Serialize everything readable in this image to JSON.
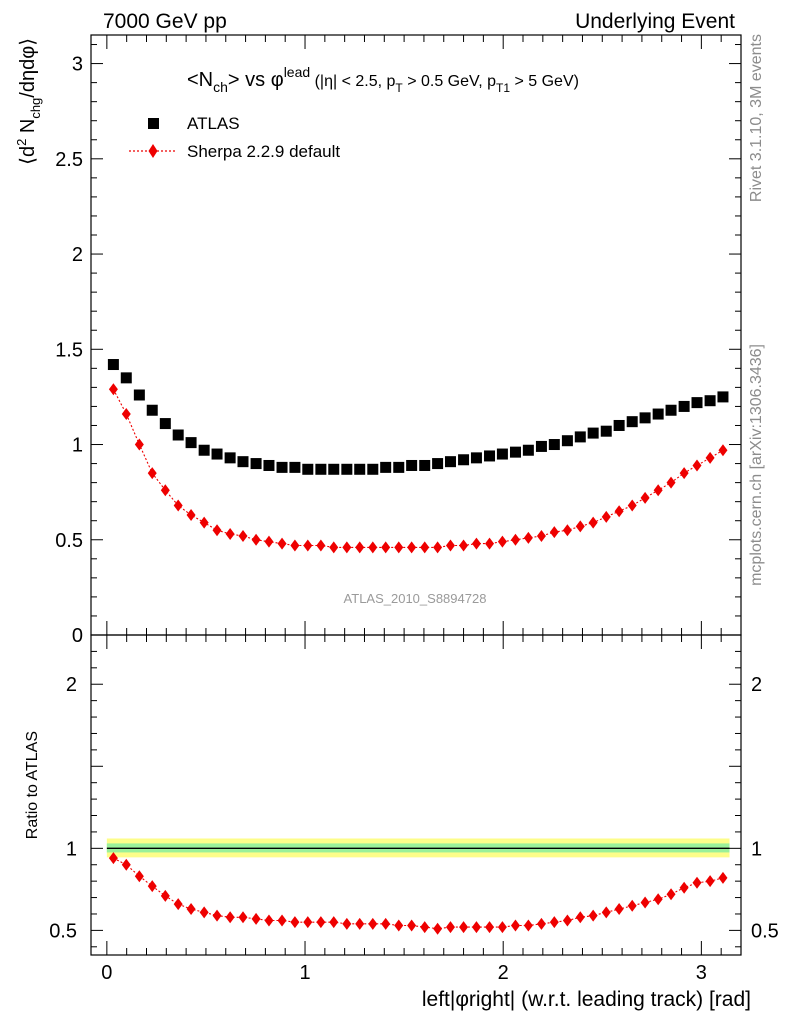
{
  "header": {
    "left": "7000 GeV pp",
    "right": "Underlying Event"
  },
  "side_labels": {
    "rivet": "Rivet 3.1.10,  3M events",
    "mcplots": "mcplots.cern.ch [arXiv:1306.3436]"
  },
  "watermark": "ATLAS_2010_S8894728",
  "chart_data": [
    {
      "type": "scatter",
      "title": "<N_ch> vs φ^lead (|η| < 2.5, p_T > 0.5 GeV, p_T1 > 5 GeV)",
      "title_parts": {
        "main": "<N",
        "sub1": "ch",
        "mid": "> vs φ",
        "sup": "lead",
        "cond1": " (|η| < 2.5, p",
        "sub2": "T",
        "cond2": " > 0.5 GeV, p",
        "sub3": "T1",
        "cond3": " > 5 GeV)"
      },
      "ylabel": "⟨d² N_chg/dηdφ⟩",
      "ylabel_parts": {
        "pre": "⟨d",
        "sup": "2",
        "mid": " N",
        "sub": "chg",
        "post": "/dηdφ⟩"
      },
      "xlim": [
        -0.08,
        3.2
      ],
      "ylim": [
        0,
        3.15
      ],
      "yticks": [
        0,
        0.5,
        1,
        1.5,
        2,
        2.5,
        3
      ],
      "yticklabels": [
        "0",
        "0.5",
        "1",
        "1.5",
        "2",
        "2.5",
        "3"
      ],
      "legend_position": "top-left",
      "x": [
        0.033,
        0.098,
        0.164,
        0.229,
        0.295,
        0.36,
        0.425,
        0.491,
        0.556,
        0.622,
        0.687,
        0.753,
        0.818,
        0.884,
        0.949,
        1.014,
        1.08,
        1.145,
        1.211,
        1.276,
        1.342,
        1.407,
        1.473,
        1.538,
        1.604,
        1.669,
        1.734,
        1.8,
        1.865,
        1.931,
        1.996,
        2.062,
        2.127,
        2.193,
        2.258,
        2.324,
        2.389,
        2.454,
        2.52,
        2.585,
        2.651,
        2.716,
        2.782,
        2.847,
        2.913,
        2.978,
        3.044,
        3.109
      ],
      "series": [
        {
          "name": "ATLAS",
          "color": "#000000",
          "marker": "square",
          "values": [
            1.42,
            1.35,
            1.26,
            1.18,
            1.11,
            1.05,
            1.01,
            0.97,
            0.95,
            0.93,
            0.91,
            0.9,
            0.89,
            0.88,
            0.88,
            0.87,
            0.87,
            0.87,
            0.87,
            0.87,
            0.87,
            0.88,
            0.88,
            0.89,
            0.89,
            0.9,
            0.91,
            0.92,
            0.93,
            0.94,
            0.95,
            0.96,
            0.97,
            0.99,
            1.0,
            1.02,
            1.04,
            1.06,
            1.07,
            1.1,
            1.12,
            1.14,
            1.16,
            1.18,
            1.2,
            1.22,
            1.23,
            1.25
          ]
        },
        {
          "name": "Sherpa 2.2.9 default",
          "color": "#ee0000",
          "marker": "diamond",
          "line": "dotted",
          "values": [
            1.29,
            1.16,
            1.0,
            0.85,
            0.76,
            0.68,
            0.63,
            0.59,
            0.55,
            0.53,
            0.52,
            0.5,
            0.49,
            0.48,
            0.47,
            0.47,
            0.47,
            0.46,
            0.46,
            0.46,
            0.46,
            0.46,
            0.46,
            0.46,
            0.46,
            0.46,
            0.47,
            0.47,
            0.48,
            0.48,
            0.49,
            0.5,
            0.51,
            0.52,
            0.54,
            0.55,
            0.57,
            0.59,
            0.62,
            0.65,
            0.68,
            0.72,
            0.76,
            0.8,
            0.85,
            0.89,
            0.93,
            0.97
          ]
        }
      ]
    },
    {
      "type": "scatter",
      "title": "",
      "ylabel": "Ratio to ATLAS",
      "xlabel": "left|φright| (w.r.t. leading track) [rad]",
      "xlim": [
        -0.08,
        3.2
      ],
      "ylim": [
        0.35,
        2.3
      ],
      "xticks": [
        0,
        1,
        2,
        3
      ],
      "xticklabels": [
        "0",
        "1",
        "2",
        "3"
      ],
      "yticks": [
        0.5,
        1,
        2
      ],
      "yticklabels": [
        "0.5",
        "1",
        "2"
      ],
      "reference_line": 1.0,
      "band_yellow": [
        0.945,
        1.06
      ],
      "band_green": [
        0.975,
        1.03
      ],
      "x": [
        0.033,
        0.098,
        0.164,
        0.229,
        0.295,
        0.36,
        0.425,
        0.491,
        0.556,
        0.622,
        0.687,
        0.753,
        0.818,
        0.884,
        0.949,
        1.014,
        1.08,
        1.145,
        1.211,
        1.276,
        1.342,
        1.407,
        1.473,
        1.538,
        1.604,
        1.669,
        1.734,
        1.8,
        1.865,
        1.931,
        1.996,
        2.062,
        2.127,
        2.193,
        2.258,
        2.324,
        2.389,
        2.454,
        2.52,
        2.585,
        2.651,
        2.716,
        2.782,
        2.847,
        2.913,
        2.978,
        3.044,
        3.109
      ],
      "series": [
        {
          "name": "Sherpa 2.2.9 default",
          "color": "#ee0000",
          "marker": "diamond",
          "line": "dotted",
          "values": [
            0.94,
            0.9,
            0.83,
            0.77,
            0.71,
            0.66,
            0.63,
            0.61,
            0.59,
            0.58,
            0.58,
            0.57,
            0.56,
            0.56,
            0.55,
            0.55,
            0.55,
            0.55,
            0.54,
            0.54,
            0.54,
            0.54,
            0.53,
            0.53,
            0.52,
            0.51,
            0.52,
            0.52,
            0.52,
            0.52,
            0.52,
            0.53,
            0.53,
            0.54,
            0.55,
            0.56,
            0.58,
            0.59,
            0.61,
            0.63,
            0.65,
            0.67,
            0.69,
            0.72,
            0.76,
            0.79,
            0.8,
            0.82
          ]
        }
      ]
    }
  ]
}
